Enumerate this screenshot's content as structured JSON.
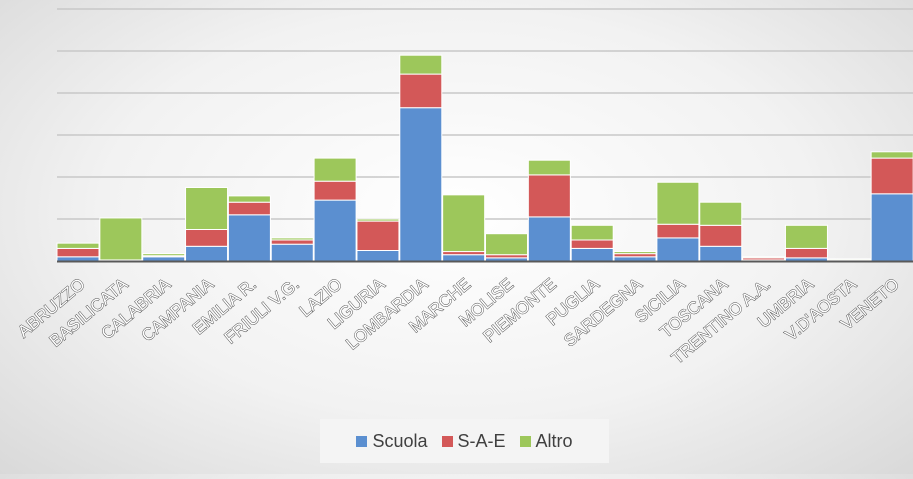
{
  "chart_data": {
    "type": "bar",
    "stacked": true,
    "categories": [
      "ABRUZZO",
      "BASILICATA",
      "CALABRIA",
      "CAMPANIA",
      "EMILIA R.",
      "FRIULI V.G.",
      "LAZIO",
      "LIGURIA",
      "LOMBARDIA",
      "MARCHE",
      "MOLISE",
      "PIEMONTE",
      "PUGLIA",
      "SARDEGNA",
      "SICILIA",
      "TOSCANA",
      "TRENTINO A.A.",
      "UMBRIA",
      "V.D'AOSTA",
      "VENETO"
    ],
    "series": [
      {
        "name": "Scuola",
        "color": "#5b8fd0",
        "values": [
          0.2,
          0.05,
          0.2,
          0.7,
          2.2,
          0.8,
          2.9,
          0.5,
          7.3,
          0.3,
          0.15,
          2.1,
          0.6,
          0.2,
          1.1,
          0.7,
          0.05,
          0.15,
          0.05,
          3.2
        ]
      },
      {
        "name": "S-A-E",
        "color": "#d35858",
        "values": [
          0.4,
          0.0,
          0.05,
          0.8,
          0.6,
          0.2,
          0.9,
          1.4,
          1.6,
          0.15,
          0.15,
          2.0,
          0.4,
          0.15,
          0.65,
          1.0,
          0.1,
          0.45,
          0.0,
          1.7
        ]
      },
      {
        "name": "Altro",
        "color": "#9dc75b",
        "values": [
          0.25,
          2.0,
          0.1,
          2.0,
          0.3,
          0.1,
          1.1,
          0.1,
          0.9,
          2.7,
          1.0,
          0.7,
          0.7,
          0.1,
          2.0,
          1.1,
          0.05,
          1.1,
          0.05,
          0.3
        ]
      }
    ],
    "ylim": [
      0,
      12
    ],
    "y_gridlines": [
      2,
      4,
      6,
      8,
      10,
      12
    ],
    "grid": true,
    "legend_position": "bottom"
  }
}
